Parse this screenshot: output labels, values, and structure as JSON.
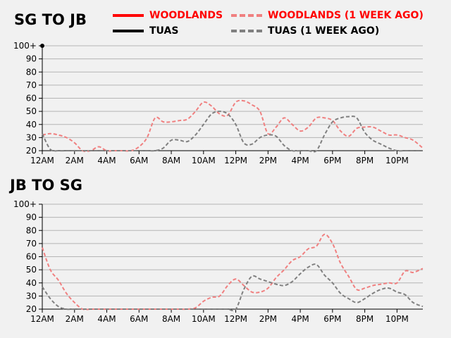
{
  "colors": {
    "woodlands": "#ff0000",
    "woodlands_prev": "#f08080",
    "tuas": "#000000",
    "tuas_prev": "#808080",
    "grid": "#b5b5b5",
    "background": "#f1f1f1"
  },
  "legend": {
    "woodlands": "WOODLANDS",
    "woodlands_prev": "WOODLANDS (1 WEEK AGO)",
    "tuas": "TUAS",
    "tuas_prev": "TUAS (1 WEEK AGO)"
  },
  "chart_data": [
    {
      "type": "line",
      "title": "SG TO JB",
      "x_ticks": [
        "12AM",
        "2AM",
        "4AM",
        "6AM",
        "8AM",
        "10AM",
        "12PM",
        "2PM",
        "4PM",
        "6PM",
        "8PM",
        "10PM"
      ],
      "y_ticks": [
        "20",
        "30",
        "40",
        "50",
        "60",
        "70",
        "80",
        "90",
        "100+"
      ],
      "ylim": [
        20,
        100
      ],
      "xlim": [
        0,
        23.6
      ],
      "grid": true,
      "series": [
        {
          "name": "WOODLANDS (1 WEEK AGO)",
          "style": "dashed",
          "x": [
            0,
            0.5,
            1,
            1.5,
            2,
            2.5,
            3,
            3.5,
            4,
            4.5,
            5,
            5.5,
            6,
            6.5,
            7,
            7.5,
            8,
            8.5,
            9,
            9.5,
            10,
            10.5,
            11,
            11.5,
            12,
            12.5,
            13,
            13.5,
            14,
            14.5,
            15,
            15.5,
            16,
            16.5,
            17,
            17.5,
            18,
            18.5,
            19,
            19.5,
            20,
            20.5,
            21,
            21.5,
            22,
            22.5,
            23,
            23.6
          ],
          "values": [
            32,
            33,
            32,
            30,
            26,
            20,
            20,
            23,
            20,
            20,
            20,
            20,
            23,
            30,
            45,
            42,
            42,
            43,
            44,
            50,
            57,
            54,
            48,
            47,
            57,
            58,
            55,
            50,
            33,
            38,
            45,
            40,
            35,
            38,
            45,
            45,
            43,
            35,
            31,
            37,
            38,
            38,
            35,
            32,
            32,
            30,
            28,
            22
          ]
        },
        {
          "name": "TUAS (1 WEEK AGO)",
          "style": "dashed",
          "x": [
            0,
            0.5,
            1,
            1.5,
            2,
            2.5,
            3,
            3.5,
            4,
            4.5,
            5,
            5.5,
            6,
            6.5,
            7,
            7.5,
            8,
            8.5,
            9,
            9.5,
            10,
            10.5,
            11,
            11.5,
            12,
            12.5,
            13,
            13.5,
            14,
            14.5,
            15,
            15.5,
            16,
            16.5,
            17,
            17.5,
            18,
            18.5,
            19,
            19.5,
            20,
            20.5,
            21,
            21.5,
            22,
            22.5,
            23,
            23.6
          ],
          "values": [
            33,
            21,
            20,
            20,
            20,
            20,
            20,
            20,
            20,
            20,
            20,
            20,
            20,
            20,
            20,
            22,
            28,
            28,
            27,
            32,
            40,
            48,
            50,
            48,
            40,
            26,
            25,
            30,
            32,
            31,
            24,
            20,
            20,
            20,
            20,
            32,
            42,
            45,
            46,
            45,
            34,
            28,
            25,
            22,
            20,
            20,
            20,
            20
          ]
        }
      ]
    },
    {
      "type": "line",
      "title": "JB TO SG",
      "x_ticks": [
        "12AM",
        "2AM",
        "4AM",
        "6AM",
        "8AM",
        "10AM",
        "12PM",
        "2PM",
        "4PM",
        "6PM",
        "8PM",
        "10PM"
      ],
      "y_ticks": [
        "20",
        "30",
        "40",
        "50",
        "60",
        "70",
        "80",
        "90",
        "100+"
      ],
      "ylim": [
        20,
        100
      ],
      "xlim": [
        0,
        23.6
      ],
      "grid": true,
      "series": [
        {
          "name": "WOODLANDS (1 WEEK AGO)",
          "style": "dashed",
          "x": [
            0,
            0.5,
            1,
            1.5,
            2,
            2.5,
            3,
            3.5,
            4,
            4.5,
            5,
            5.5,
            6,
            6.5,
            7,
            7.5,
            8,
            8.5,
            9,
            9.5,
            10,
            10.5,
            11,
            11.5,
            12,
            12.5,
            13,
            13.5,
            14,
            14.5,
            15,
            15.5,
            16,
            16.5,
            17,
            17.5,
            18,
            18.5,
            19,
            19.5,
            20,
            20.5,
            21,
            21.5,
            22,
            22.5,
            23,
            23.6
          ],
          "values": [
            67,
            50,
            42,
            32,
            25,
            20,
            20,
            20,
            20,
            20,
            20,
            20,
            20,
            20,
            20,
            20,
            20,
            20,
            20,
            21,
            26,
            29,
            30,
            38,
            43,
            38,
            33,
            33,
            36,
            44,
            50,
            57,
            60,
            66,
            68,
            77,
            70,
            55,
            45,
            35,
            36,
            38,
            39,
            40,
            40,
            49,
            48,
            51
          ]
        },
        {
          "name": "TUAS (1 WEEK AGO)",
          "style": "dashed",
          "x": [
            0,
            0.5,
            1,
            1.5,
            2,
            2.5,
            3,
            3.5,
            4,
            4.5,
            5,
            5.5,
            6,
            6.5,
            7,
            7.5,
            8,
            8.5,
            9,
            9.5,
            10,
            10.5,
            11,
            11.5,
            12,
            12.5,
            13,
            13.5,
            14,
            14.5,
            15,
            15.5,
            16,
            16.5,
            17,
            17.5,
            18,
            18.5,
            19,
            19.5,
            20,
            20.5,
            21,
            21.5,
            22,
            22.5,
            23,
            23.6
          ],
          "values": [
            37,
            28,
            22,
            20,
            20,
            20,
            20,
            20,
            20,
            20,
            20,
            20,
            20,
            20,
            20,
            20,
            20,
            20,
            20,
            20,
            20,
            20,
            20,
            20,
            20,
            35,
            45,
            43,
            41,
            39,
            38,
            41,
            47,
            52,
            54,
            46,
            40,
            32,
            28,
            25,
            28,
            32,
            35,
            36,
            33,
            31,
            25,
            22
          ]
        }
      ]
    }
  ]
}
